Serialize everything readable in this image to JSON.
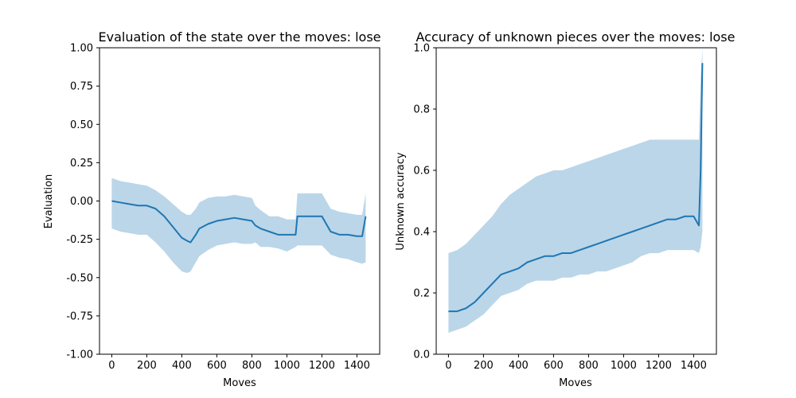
{
  "chart_data": [
    {
      "type": "line",
      "title": "Evaluation of the state over the moves: lose",
      "xlabel": "Moves",
      "ylabel": "Evaluation",
      "xlim": [
        -70,
        1530
      ],
      "ylim": [
        -1.0,
        1.0
      ],
      "xticks": [
        0,
        200,
        400,
        600,
        800,
        1000,
        1200,
        1400
      ],
      "yticks": [
        -1.0,
        -0.75,
        -0.5,
        -0.25,
        0.0,
        0.25,
        0.5,
        0.75,
        1.0
      ],
      "ytick_decimals": 2,
      "color": "#1f77b4",
      "series": [
        {
          "x": [
            0,
            50,
            100,
            150,
            200,
            250,
            300,
            350,
            400,
            430,
            450,
            480,
            500,
            550,
            600,
            650,
            700,
            750,
            800,
            820,
            850,
            900,
            950,
            1000,
            1050,
            1060,
            1100,
            1150,
            1200,
            1250,
            1300,
            1350,
            1400,
            1430,
            1450
          ],
          "y": [
            0.0,
            -0.01,
            -0.02,
            -0.03,
            -0.03,
            -0.05,
            -0.1,
            -0.17,
            -0.24,
            -0.26,
            -0.27,
            -0.22,
            -0.18,
            -0.15,
            -0.13,
            -0.12,
            -0.11,
            -0.12,
            -0.13,
            -0.16,
            -0.18,
            -0.2,
            -0.22,
            -0.22,
            -0.22,
            -0.1,
            -0.1,
            -0.1,
            -0.1,
            -0.2,
            -0.22,
            -0.22,
            -0.23,
            -0.23,
            -0.1
          ],
          "lower": [
            -0.18,
            -0.2,
            -0.21,
            -0.22,
            -0.22,
            -0.27,
            -0.33,
            -0.4,
            -0.46,
            -0.47,
            -0.46,
            -0.4,
            -0.36,
            -0.32,
            -0.29,
            -0.28,
            -0.27,
            -0.28,
            -0.28,
            -0.27,
            -0.3,
            -0.3,
            -0.31,
            -0.33,
            -0.3,
            -0.29,
            -0.29,
            -0.29,
            -0.29,
            -0.35,
            -0.37,
            -0.38,
            -0.4,
            -0.41,
            -0.4
          ],
          "upper": [
            0.15,
            0.13,
            0.12,
            0.11,
            0.1,
            0.07,
            0.03,
            -0.02,
            -0.07,
            -0.09,
            -0.09,
            -0.05,
            -0.01,
            0.02,
            0.03,
            0.03,
            0.04,
            0.03,
            0.02,
            -0.03,
            -0.06,
            -0.1,
            -0.1,
            -0.12,
            -0.12,
            0.05,
            0.05,
            0.05,
            0.05,
            -0.05,
            -0.07,
            -0.08,
            -0.09,
            -0.09,
            0.05
          ]
        }
      ]
    },
    {
      "type": "line",
      "title": "Accuracy of unknown pieces over the moves: lose",
      "xlabel": "Moves",
      "ylabel": "Unknown accuracy",
      "xlim": [
        -70,
        1530
      ],
      "ylim": [
        0.0,
        1.0
      ],
      "xticks": [
        0,
        200,
        400,
        600,
        800,
        1000,
        1200,
        1400
      ],
      "yticks": [
        0.0,
        0.2,
        0.4,
        0.6,
        0.8,
        1.0
      ],
      "ytick_decimals": 1,
      "color": "#1f77b4",
      "series": [
        {
          "x": [
            0,
            50,
            100,
            150,
            200,
            250,
            300,
            350,
            400,
            450,
            500,
            550,
            600,
            650,
            700,
            750,
            800,
            850,
            900,
            950,
            1000,
            1050,
            1100,
            1150,
            1200,
            1250,
            1300,
            1350,
            1400,
            1430,
            1440,
            1450
          ],
          "y": [
            0.14,
            0.14,
            0.15,
            0.17,
            0.2,
            0.23,
            0.26,
            0.27,
            0.28,
            0.3,
            0.31,
            0.32,
            0.32,
            0.33,
            0.33,
            0.34,
            0.35,
            0.36,
            0.37,
            0.38,
            0.39,
            0.4,
            0.41,
            0.42,
            0.43,
            0.44,
            0.44,
            0.45,
            0.45,
            0.42,
            0.6,
            0.95
          ],
          "lower": [
            0.07,
            0.08,
            0.09,
            0.11,
            0.13,
            0.16,
            0.19,
            0.2,
            0.21,
            0.23,
            0.24,
            0.24,
            0.24,
            0.25,
            0.25,
            0.26,
            0.26,
            0.27,
            0.27,
            0.28,
            0.29,
            0.3,
            0.32,
            0.33,
            0.33,
            0.34,
            0.34,
            0.34,
            0.34,
            0.33,
            0.35,
            0.4
          ],
          "upper": [
            0.33,
            0.34,
            0.36,
            0.39,
            0.42,
            0.45,
            0.49,
            0.52,
            0.54,
            0.56,
            0.58,
            0.59,
            0.6,
            0.6,
            0.61,
            0.62,
            0.63,
            0.64,
            0.65,
            0.66,
            0.67,
            0.68,
            0.69,
            0.7,
            0.7,
            0.7,
            0.7,
            0.7,
            0.7,
            0.7,
            0.9,
            1.0
          ]
        }
      ]
    }
  ]
}
